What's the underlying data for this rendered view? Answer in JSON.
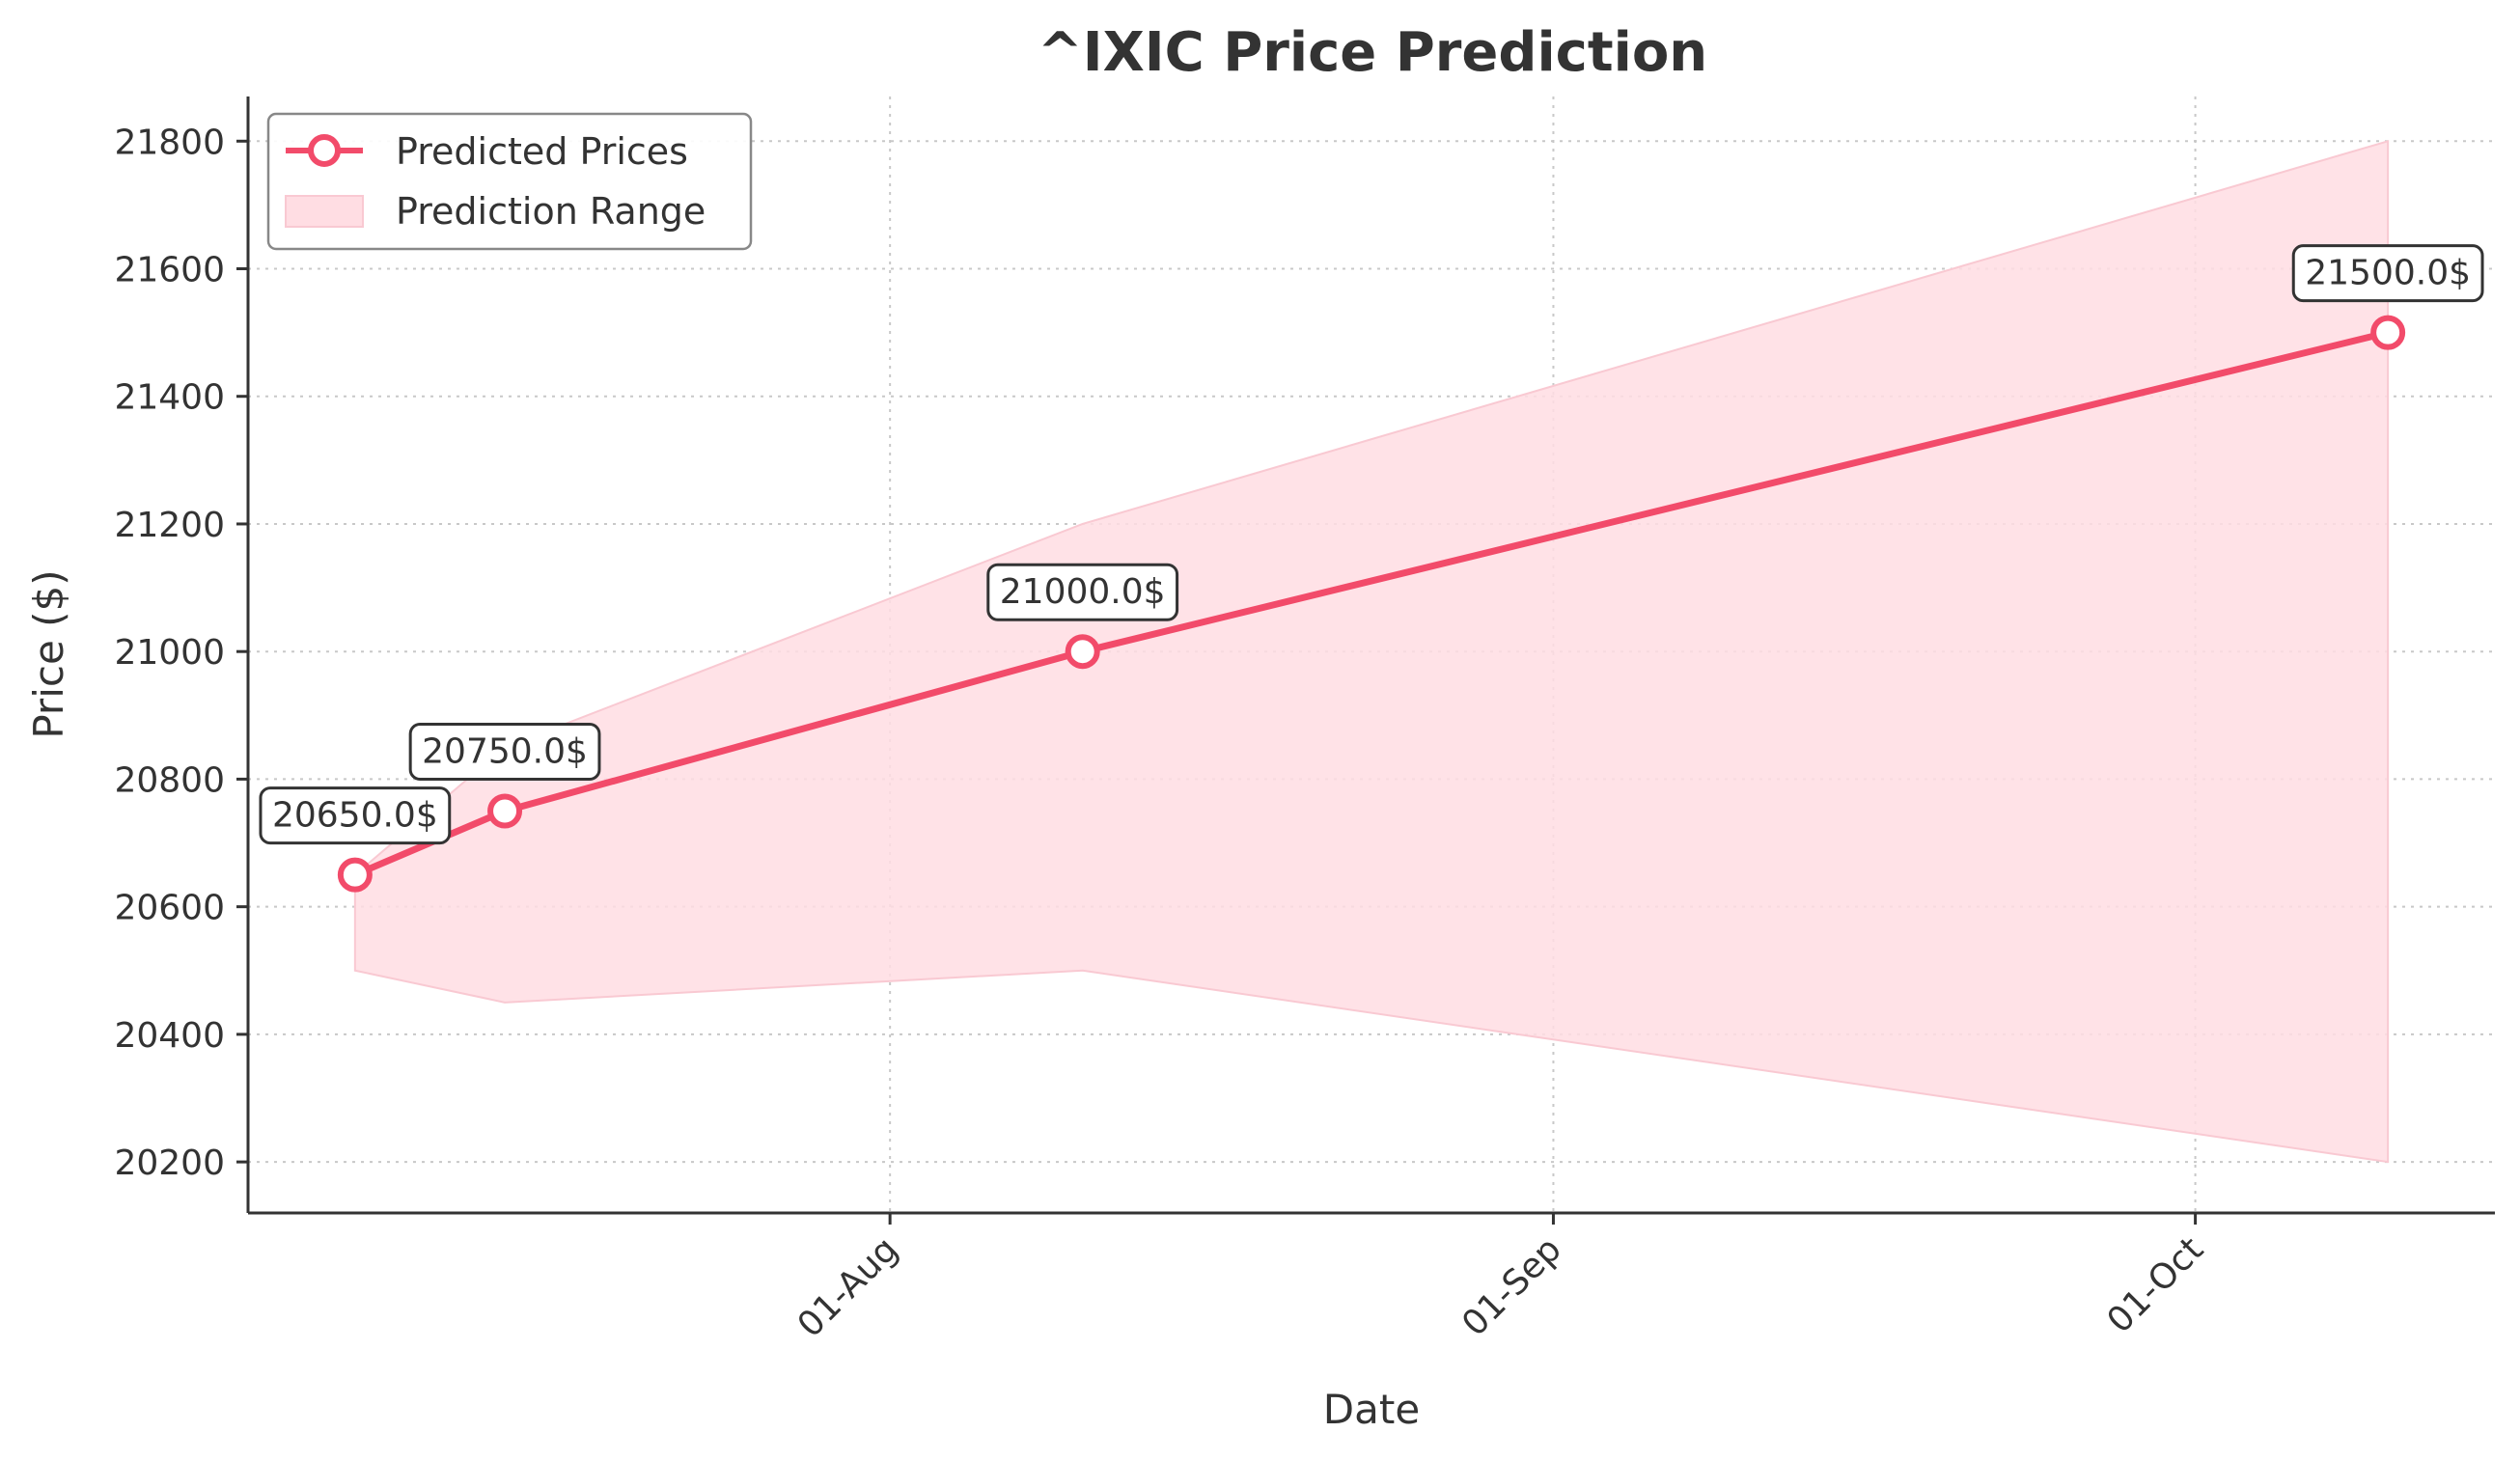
{
  "chart_data": {
    "type": "line",
    "title": "^IXIC Price Prediction",
    "xlabel": "Date",
    "ylabel": "Price ($)",
    "x_dates": [
      "2024-07-07",
      "2024-07-14",
      "2024-08-10",
      "2024-10-10"
    ],
    "series": [
      {
        "name": "Predicted Prices",
        "values": [
          20650,
          20750,
          21000,
          21500
        ],
        "color": "#f24b6a"
      }
    ],
    "range": {
      "name": "Prediction Range",
      "lower": [
        20500,
        20450,
        20500,
        20200
      ],
      "upper": [
        20650,
        20850,
        21200,
        21800
      ],
      "color": "#ffdde3"
    },
    "data_labels": [
      "20650.0$",
      "20750.0$",
      "21000.0$",
      "21500.0$"
    ],
    "x_ticks": [
      {
        "date": "2024-08-01",
        "label": "01-Aug"
      },
      {
        "date": "2024-09-01",
        "label": "01-Sep"
      },
      {
        "date": "2024-10-01",
        "label": "01-Oct"
      }
    ],
    "y_ticks": [
      20200,
      20400,
      20600,
      20800,
      21000,
      21200,
      21400,
      21600,
      21800
    ],
    "xlim": [
      "2024-07-02",
      "2024-10-15"
    ],
    "ylim": [
      20120,
      21870
    ],
    "grid": true,
    "legend_position": "top-left"
  }
}
